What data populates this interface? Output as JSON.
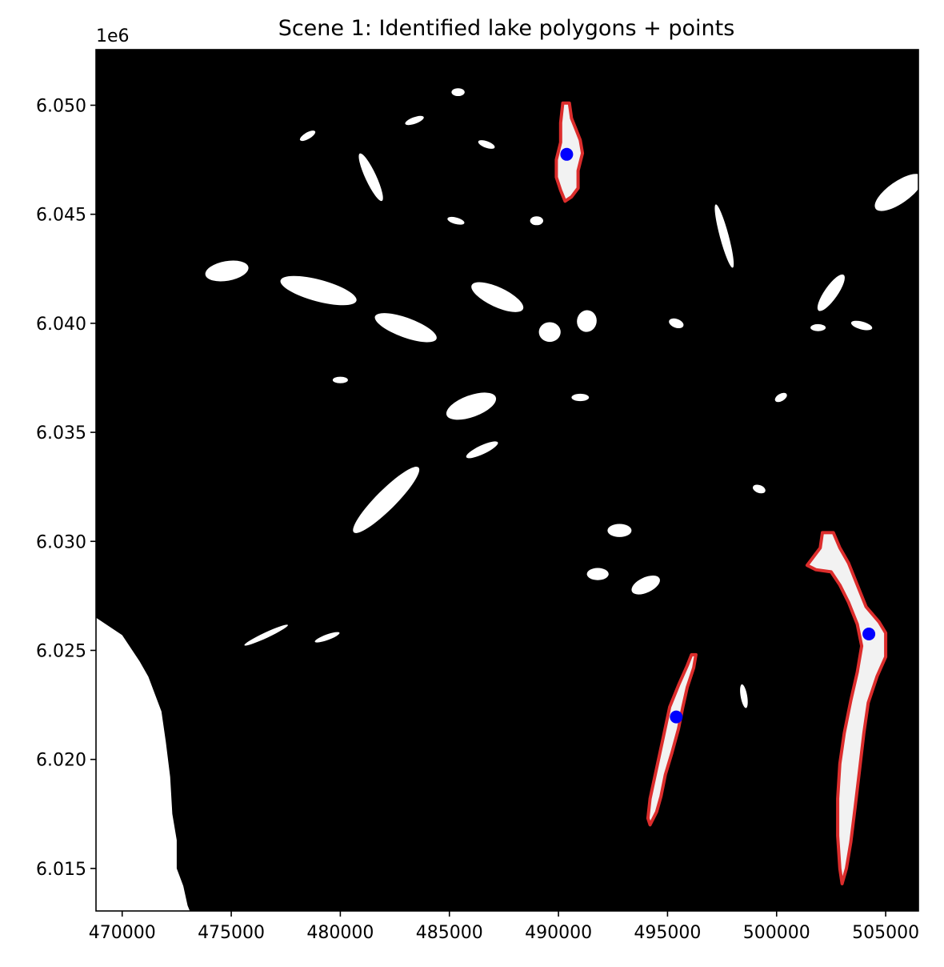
{
  "chart_data": {
    "type": "scatter",
    "title": "Scene 1: Identified lake polygons + points",
    "xlabel": "",
    "ylabel": "",
    "y_offset_label": "1e6",
    "xlim": [
      468800,
      506500
    ],
    "ylim": [
      6.01305,
      6.05255
    ],
    "y_scale": 1000000,
    "xticks": [
      470000,
      475000,
      480000,
      485000,
      490000,
      495000,
      500000,
      505000
    ],
    "xtick_labels": [
      "470000",
      "475000",
      "480000",
      "485000",
      "490000",
      "495000",
      "500000",
      "505000"
    ],
    "yticks": [
      6.015,
      6.02,
      6.025,
      6.03,
      6.035,
      6.04,
      6.045,
      6.05
    ],
    "ytick_labels": [
      "6.015",
      "6.020",
      "6.025",
      "6.030",
      "6.035",
      "6.040",
      "6.045",
      "6.050"
    ],
    "grid": false,
    "background": "binary water mask (white = water, black = land)",
    "colors": {
      "mask_land": "#000000",
      "mask_water": "#ffffff",
      "polygon_outline": "#e8302f",
      "point": "#0000ff"
    },
    "lake_polygons": [
      {
        "name": "lake-1",
        "outline": [
          [
            490200,
            6.0501
          ],
          [
            490500,
            6.0501
          ],
          [
            490600,
            6.0494
          ],
          [
            490800,
            6.0489
          ],
          [
            491000,
            6.0484
          ],
          [
            491100,
            6.0478
          ],
          [
            490900,
            6.047
          ],
          [
            490900,
            6.0462
          ],
          [
            490600,
            6.0458
          ],
          [
            490300,
            6.0456
          ],
          [
            490100,
            6.0461
          ],
          [
            489900,
            6.0467
          ],
          [
            489900,
            6.0475
          ],
          [
            490100,
            6.0483
          ],
          [
            490100,
            6.0492
          ]
        ]
      },
      {
        "name": "lake-2",
        "outline": [
          [
            496300,
            6.0248
          ],
          [
            496200,
            6.0242
          ],
          [
            495900,
            6.0233
          ],
          [
            495700,
            6.0224
          ],
          [
            495500,
            6.0214
          ],
          [
            495200,
            6.0203
          ],
          [
            494900,
            6.0193
          ],
          [
            494700,
            6.0183
          ],
          [
            494500,
            6.0176
          ],
          [
            494200,
            6.017
          ],
          [
            494100,
            6.0173
          ],
          [
            494200,
            6.0182
          ],
          [
            494500,
            6.0196
          ],
          [
            494800,
            6.021
          ],
          [
            495100,
            6.0224
          ],
          [
            495500,
            6.0234
          ],
          [
            495900,
            6.0243
          ],
          [
            496100,
            6.0248
          ]
        ]
      },
      {
        "name": "lake-3",
        "outline": [
          [
            502100,
            6.0304
          ],
          [
            502600,
            6.0304
          ],
          [
            502900,
            6.0297
          ],
          [
            503300,
            6.029
          ],
          [
            503700,
            6.028
          ],
          [
            504100,
            6.027
          ],
          [
            504700,
            6.0263
          ],
          [
            505000,
            6.0258
          ],
          [
            505000,
            6.0247
          ],
          [
            504600,
            6.0238
          ],
          [
            504200,
            6.0226
          ],
          [
            504000,
            6.0212
          ],
          [
            503800,
            6.0195
          ],
          [
            503600,
            6.0178
          ],
          [
            503400,
            6.0162
          ],
          [
            503200,
            6.015
          ],
          [
            503000,
            6.0143
          ],
          [
            502900,
            6.015
          ],
          [
            502800,
            6.0165
          ],
          [
            502800,
            6.0182
          ],
          [
            502900,
            6.0198
          ],
          [
            503100,
            6.0212
          ],
          [
            503400,
            6.0227
          ],
          [
            503700,
            6.024
          ],
          [
            503900,
            6.0252
          ],
          [
            503700,
            6.0262
          ],
          [
            503300,
            6.0272
          ],
          [
            502900,
            6.028
          ],
          [
            502500,
            6.0286
          ],
          [
            501800,
            6.0287
          ],
          [
            501400,
            6.0289
          ],
          [
            501700,
            6.0293
          ],
          [
            502000,
            6.0297
          ]
        ]
      }
    ],
    "points": [
      {
        "name": "lake-1-point",
        "x": 490380,
        "y": 6.04775
      },
      {
        "name": "lake-2-point",
        "x": 495400,
        "y": 6.02195
      },
      {
        "name": "lake-3-point",
        "x": 504230,
        "y": 6.02575
      }
    ],
    "water_blobs": [
      {
        "x": 482100,
        "y": 6.0319,
        "rx": 2100,
        "ry": 450,
        "a": -45
      },
      {
        "x": 486000,
        "y": 6.0362,
        "rx": 1200,
        "ry": 500,
        "a": -20
      },
      {
        "x": 487200,
        "y": 6.0412,
        "rx": 1300,
        "ry": 450,
        "a": 25
      },
      {
        "x": 483000,
        "y": 6.0398,
        "rx": 1500,
        "ry": 450,
        "a": 20
      },
      {
        "x": 479000,
        "y": 6.0415,
        "rx": 1800,
        "ry": 500,
        "a": 15
      },
      {
        "x": 474800,
        "y": 6.0424,
        "rx": 1000,
        "ry": 450,
        "a": -10
      },
      {
        "x": 481400,
        "y": 6.0467,
        "rx": 1200,
        "ry": 250,
        "a": 65
      },
      {
        "x": 497600,
        "y": 6.044,
        "rx": 1500,
        "ry": 200,
        "a": 75
      },
      {
        "x": 505600,
        "y": 6.046,
        "rx": 1300,
        "ry": 500,
        "a": -35
      },
      {
        "x": 502500,
        "y": 6.0414,
        "rx": 1000,
        "ry": 300,
        "a": -55
      },
      {
        "x": 489600,
        "y": 6.0396,
        "rx": 500,
        "ry": 450,
        "a": 0
      },
      {
        "x": 491300,
        "y": 6.0401,
        "rx": 450,
        "ry": 500,
        "a": 10
      },
      {
        "x": 485400,
        "y": 6.0506,
        "rx": 300,
        "ry": 180,
        "a": 0
      },
      {
        "x": 483400,
        "y": 6.0493,
        "rx": 450,
        "ry": 150,
        "a": -20
      },
      {
        "x": 486700,
        "y": 6.0482,
        "rx": 400,
        "ry": 150,
        "a": 20
      },
      {
        "x": 492800,
        "y": 6.0305,
        "rx": 550,
        "ry": 300,
        "a": 0
      },
      {
        "x": 494000,
        "y": 6.028,
        "rx": 700,
        "ry": 350,
        "a": -25
      },
      {
        "x": 491800,
        "y": 6.0285,
        "rx": 500,
        "ry": 280,
        "a": 0
      },
      {
        "x": 499200,
        "y": 6.0324,
        "rx": 300,
        "ry": 180,
        "a": 20
      },
      {
        "x": 498500,
        "y": 6.0229,
        "rx": 550,
        "ry": 150,
        "a": 80
      },
      {
        "x": 479400,
        "y": 6.0256,
        "rx": 600,
        "ry": 130,
        "a": -20
      },
      {
        "x": 476600,
        "y": 6.0257,
        "rx": 1100,
        "ry": 130,
        "a": -25
      },
      {
        "x": 486500,
        "y": 6.0342,
        "rx": 800,
        "ry": 200,
        "a": -25
      },
      {
        "x": 480000,
        "y": 6.0374,
        "rx": 350,
        "ry": 150,
        "a": 0
      },
      {
        "x": 503900,
        "y": 6.0399,
        "rx": 500,
        "ry": 180,
        "a": 15
      },
      {
        "x": 501900,
        "y": 6.0398,
        "rx": 350,
        "ry": 160,
        "a": 0
      },
      {
        "x": 489000,
        "y": 6.0447,
        "rx": 300,
        "ry": 200,
        "a": 0
      },
      {
        "x": 491000,
        "y": 6.0366,
        "rx": 400,
        "ry": 170,
        "a": 0
      },
      {
        "x": 478500,
        "y": 6.0486,
        "rx": 400,
        "ry": 150,
        "a": -30
      },
      {
        "x": 485300,
        "y": 6.0447,
        "rx": 400,
        "ry": 150,
        "a": 15
      },
      {
        "x": 500200,
        "y": 6.0366,
        "rx": 300,
        "ry": 170,
        "a": -30
      },
      {
        "x": 495400,
        "y": 6.04,
        "rx": 350,
        "ry": 200,
        "a": 20
      }
    ],
    "coast": [
      [
        468800,
        6.0265
      ],
      [
        470000,
        6.0257
      ],
      [
        470800,
        6.0245
      ],
      [
        471200,
        6.0238
      ],
      [
        471800,
        6.0222
      ],
      [
        472000,
        6.0208
      ],
      [
        472200,
        6.0192
      ],
      [
        472300,
        6.0175
      ],
      [
        472500,
        6.0163
      ],
      [
        472500,
        6.015
      ],
      [
        472800,
        6.0142
      ],
      [
        473000,
        6.0133
      ],
      [
        473100,
        6.01305
      ],
      [
        468800,
        6.01305
      ]
    ]
  }
}
